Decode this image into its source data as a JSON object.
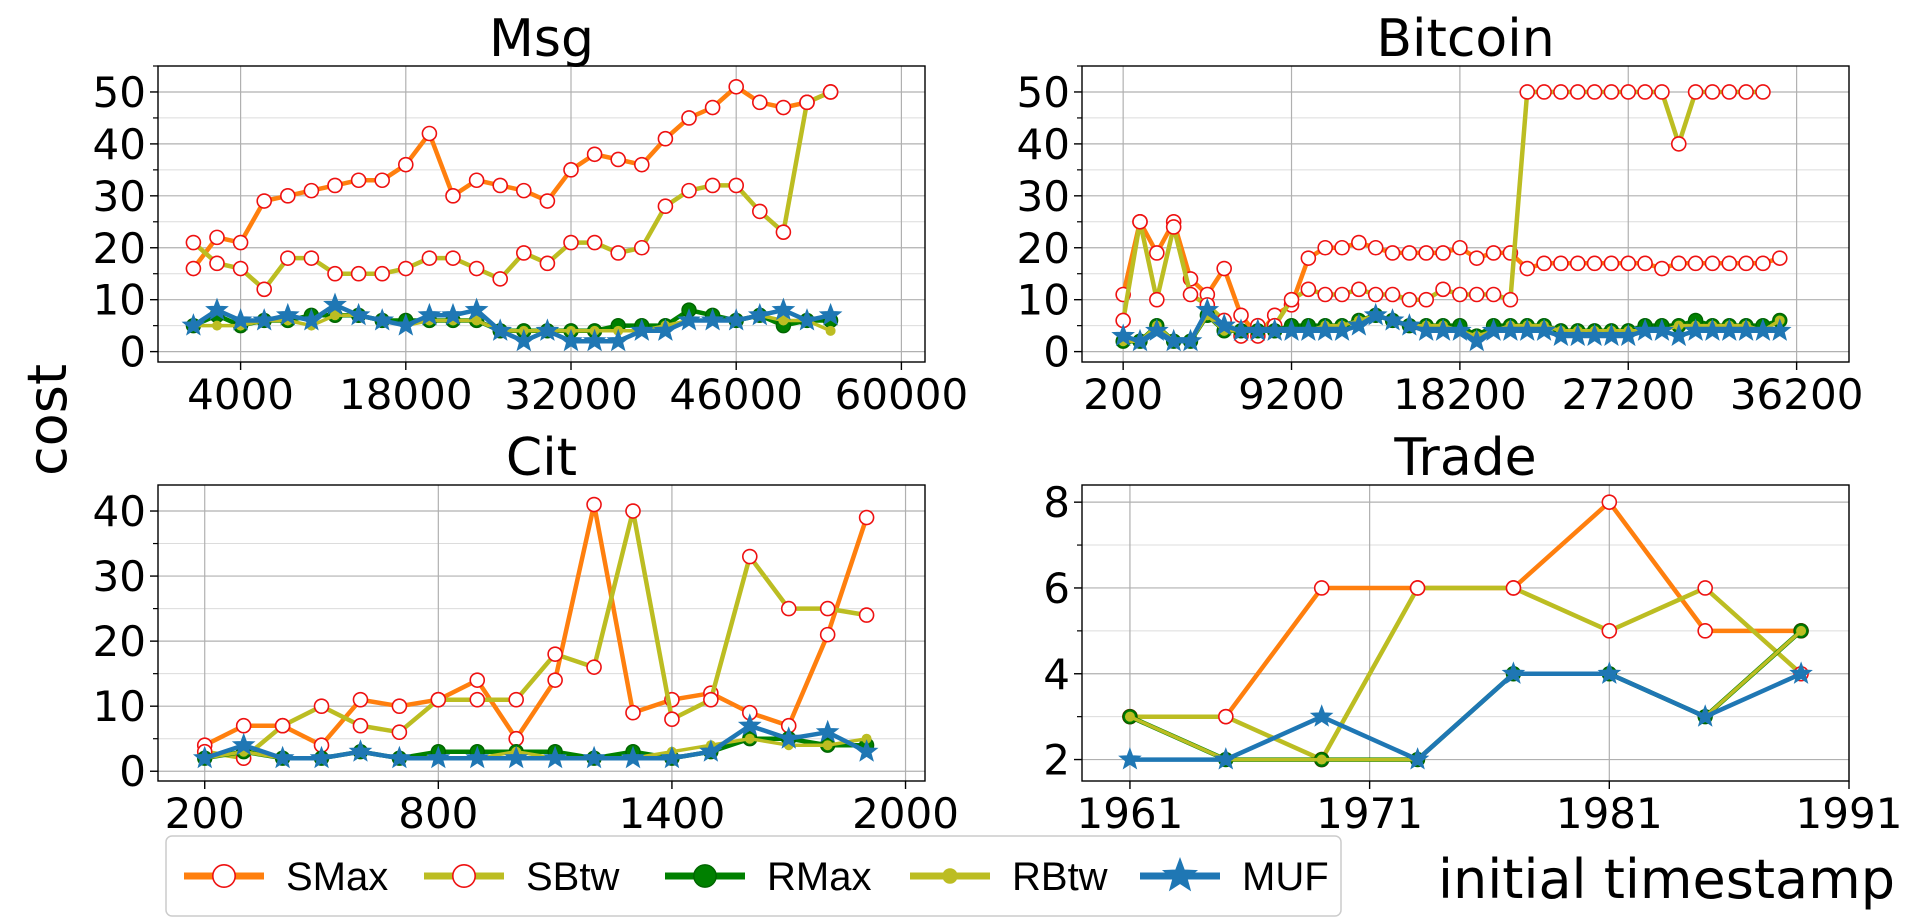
{
  "figure": {
    "ylabel": "cost",
    "xlabel": "initial timestamp"
  },
  "legend": {
    "placement": "bottom-left",
    "items": [
      {
        "label": "SMax",
        "key": "SMax"
      },
      {
        "label": "SBtw",
        "key": "SBtw"
      },
      {
        "label": "RMax",
        "key": "RMax"
      },
      {
        "label": "RBtw",
        "key": "RBtw"
      },
      {
        "label": "MUF",
        "key": "MUF"
      }
    ]
  },
  "styles": {
    "SMax": {
      "color": "#ff7f0e",
      "marker": "open-circle",
      "marker_edge": "#ee1111",
      "marker_fill": "#ffffff"
    },
    "SBtw": {
      "color": "#bcbd22",
      "marker": "open-circle",
      "marker_edge": "#ee1111",
      "marker_fill": "#ffffff"
    },
    "RMax": {
      "color": "#008000",
      "marker": "filled-circle",
      "marker_edge": "#006400",
      "marker_fill": "#008000"
    },
    "RBtw": {
      "color": "#bcbd22",
      "marker": "small-circle",
      "marker_edge": "#bcbd22",
      "marker_fill": "#bcbd22"
    },
    "MUF": {
      "color": "#1f77b4",
      "marker": "star",
      "marker_edge": "#1f77b4",
      "marker_fill": "#1f77b4"
    }
  },
  "chart_data": [
    {
      "type": "line",
      "title": "Msg",
      "grid": true,
      "xlim": [
        -3000,
        62000
      ],
      "ylim": [
        -2,
        55
      ],
      "xticks": [
        4000,
        18000,
        32000,
        46000,
        60000
      ],
      "yticks": [
        0,
        10,
        20,
        30,
        40,
        50
      ],
      "x": [
        0,
        2000,
        4000,
        6000,
        8000,
        10000,
        12000,
        14000,
        16000,
        18000,
        20000,
        22000,
        24000,
        26000,
        28000,
        30000,
        32000,
        34000,
        36000,
        38000,
        40000,
        42000,
        44000,
        46000,
        48000,
        50000,
        52000,
        54000,
        56000,
        58000
      ],
      "series": [
        {
          "name": "SMax",
          "values": [
            16,
            22,
            21,
            29,
            30,
            31,
            32,
            33,
            33,
            36,
            42,
            30,
            33,
            32,
            31,
            29,
            35,
            38,
            37,
            36,
            41,
            45,
            47,
            51,
            48,
            47,
            48,
            50,
            null,
            null
          ]
        },
        {
          "name": "SBtw",
          "values": [
            21,
            17,
            16,
            12,
            18,
            18,
            15,
            15,
            15,
            16,
            18,
            18,
            16,
            14,
            19,
            17,
            21,
            21,
            19,
            20,
            28,
            31,
            32,
            32,
            27,
            23,
            48,
            50,
            null,
            null
          ]
        },
        {
          "name": "RMax",
          "values": [
            5,
            7,
            5,
            6,
            6,
            7,
            7,
            7,
            6,
            6,
            6,
            6,
            6,
            4,
            4,
            4,
            4,
            4,
            5,
            5,
            5,
            8,
            7,
            6,
            7,
            5,
            6,
            6,
            null,
            null
          ]
        },
        {
          "name": "RBtw",
          "values": [
            5,
            5,
            5,
            6,
            6,
            5,
            7,
            7,
            6,
            5,
            6,
            6,
            6,
            4,
            4,
            4,
            4,
            4,
            4,
            4,
            5,
            6,
            6,
            6,
            7,
            6,
            6,
            4,
            null,
            null
          ]
        },
        {
          "name": "MUF",
          "values": [
            5,
            8,
            6,
            6,
            7,
            6,
            9,
            7,
            6,
            5,
            7,
            7,
            8,
            4,
            2,
            4,
            2,
            2,
            2,
            4,
            4,
            6,
            6,
            6,
            7,
            8,
            6,
            7,
            null,
            null
          ]
        }
      ]
    },
    {
      "type": "line",
      "title": "Bitcoin",
      "grid": true,
      "xlim": [
        -2000,
        39000
      ],
      "ylim": [
        -2,
        55
      ],
      "xticks": [
        200,
        9200,
        18200,
        27200,
        36200
      ],
      "yticks": [
        0,
        10,
        20,
        30,
        40,
        50
      ],
      "x": [
        200,
        1100,
        2000,
        2900,
        3800,
        4700,
        5600,
        6500,
        7400,
        8300,
        9200,
        10100,
        11000,
        11900,
        12800,
        13700,
        14600,
        15500,
        16400,
        17300,
        18200,
        19100,
        20000,
        20900,
        21800,
        22700,
        23600,
        24500,
        25400,
        26300,
        27200,
        28100,
        29000,
        29900,
        30800,
        31700,
        32600,
        33500,
        34400,
        35300,
        36200
      ],
      "series": [
        {
          "name": "SMax",
          "values": [
            11,
            25,
            19,
            25,
            14,
            11,
            16,
            7,
            3,
            7,
            9,
            18,
            20,
            20,
            21,
            20,
            19,
            19,
            19,
            19,
            20,
            18,
            19,
            19,
            16,
            17,
            17,
            17,
            17,
            17,
            17,
            17,
            16,
            17,
            17,
            17,
            17,
            17,
            17,
            18,
            null
          ]
        },
        {
          "name": "SBtw",
          "values": [
            6,
            25,
            10,
            24,
            11,
            9,
            6,
            3,
            5,
            5,
            10,
            12,
            11,
            11,
            12,
            11,
            11,
            10,
            10,
            12,
            11,
            11,
            11,
            10,
            50,
            50,
            50,
            50,
            50,
            50,
            50,
            50,
            50,
            40,
            50,
            50,
            50,
            50,
            50,
            null,
            null
          ]
        },
        {
          "name": "RMax",
          "values": [
            2,
            2,
            5,
            2,
            2,
            7,
            4,
            4,
            4,
            4,
            5,
            5,
            5,
            5,
            6,
            7,
            6,
            5,
            5,
            5,
            5,
            3,
            5,
            5,
            5,
            5,
            4,
            4,
            4,
            4,
            4,
            5,
            5,
            5,
            6,
            5,
            5,
            5,
            5,
            6,
            null
          ]
        },
        {
          "name": "RBtw",
          "values": [
            2,
            2,
            5,
            2,
            2,
            7,
            4,
            4,
            4,
            4,
            4,
            4,
            5,
            5,
            6,
            7,
            6,
            5,
            5,
            5,
            4,
            3,
            4,
            5,
            5,
            5,
            4,
            4,
            4,
            4,
            4,
            4,
            4,
            5,
            5,
            5,
            5,
            5,
            4,
            6,
            null
          ]
        },
        {
          "name": "MUF",
          "values": [
            3,
            2,
            4,
            2,
            2,
            8,
            5,
            4,
            4,
            4,
            4,
            4,
            4,
            4,
            5,
            7,
            6,
            5,
            4,
            4,
            4,
            2,
            4,
            4,
            4,
            4,
            3,
            3,
            3,
            3,
            3,
            4,
            4,
            3,
            4,
            4,
            4,
            4,
            4,
            4,
            null
          ]
        }
      ]
    },
    {
      "type": "line",
      "title": "Cit",
      "grid": true,
      "xlim": [
        80,
        2050
      ],
      "ylim": [
        -1.5,
        44
      ],
      "xticks": [
        200,
        800,
        1400,
        2000
      ],
      "yticks": [
        0,
        10,
        20,
        30,
        40
      ],
      "x": [
        200,
        300,
        400,
        500,
        600,
        700,
        800,
        900,
        1000,
        1100,
        1200,
        1300,
        1400,
        1500,
        1600,
        1700,
        1800,
        1900
      ],
      "series": [
        {
          "name": "SMax",
          "values": [
            4,
            7,
            7,
            4,
            11,
            10,
            11,
            14,
            5,
            14,
            41,
            9,
            11,
            12,
            9,
            7,
            21,
            39
          ]
        },
        {
          "name": "SBtw",
          "values": [
            3,
            2,
            7,
            10,
            7,
            6,
            11,
            11,
            11,
            18,
            16,
            40,
            8,
            11,
            33,
            25,
            25,
            24
          ]
        },
        {
          "name": "RMax",
          "values": [
            2,
            3,
            2,
            2,
            3,
            2,
            3,
            3,
            3,
            3,
            2,
            3,
            2,
            3,
            5,
            5,
            4,
            4
          ]
        },
        {
          "name": "RBtw",
          "values": [
            2,
            3,
            2,
            2,
            3,
            2,
            2,
            2,
            3,
            2,
            2,
            2,
            3,
            4,
            5,
            4,
            4,
            5
          ]
        },
        {
          "name": "MUF",
          "values": [
            2,
            4,
            2,
            2,
            3,
            2,
            2,
            2,
            2,
            2,
            2,
            2,
            2,
            3,
            7,
            5,
            6,
            3
          ]
        }
      ]
    },
    {
      "type": "line",
      "title": "Trade",
      "grid": true,
      "xlim": [
        1959,
        1991
      ],
      "ylim": [
        1.5,
        8.4
      ],
      "xticks": [
        1961,
        1971,
        1981,
        1991
      ],
      "yticks": [
        2,
        4,
        6,
        8
      ],
      "x": [
        1961,
        1965,
        1969,
        1973,
        1977,
        1981,
        1985,
        1989
      ],
      "series": [
        {
          "name": "SMax",
          "values": [
            3,
            3,
            6,
            6,
            6,
            8,
            5,
            5
          ]
        },
        {
          "name": "SBtw",
          "values": [
            3,
            3,
            2,
            6,
            6,
            5,
            6,
            4
          ]
        },
        {
          "name": "RMax",
          "values": [
            3,
            2,
            2,
            2,
            4,
            4,
            3,
            5
          ]
        },
        {
          "name": "RBtw",
          "values": [
            3,
            2,
            2,
            2,
            4,
            4,
            3,
            5
          ]
        },
        {
          "name": "MUF",
          "values": [
            2,
            2,
            3,
            2,
            4,
            4,
            3,
            4
          ]
        }
      ]
    }
  ]
}
